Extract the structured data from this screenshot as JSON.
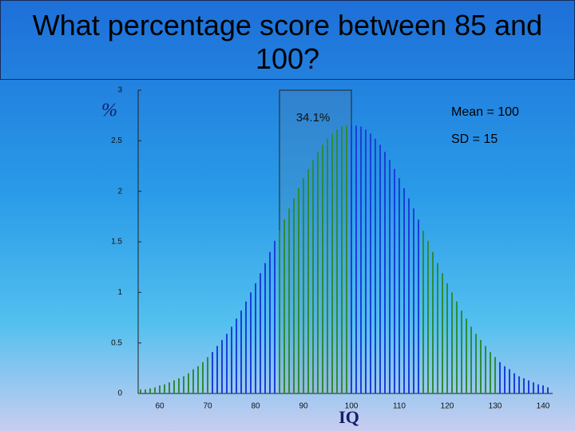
{
  "chart_data": {
    "type": "bar",
    "title": "What percentage score between 85 and 100?",
    "x_label": "IQ",
    "y_label": "%",
    "annotations": [
      "34.1%",
      "Mean = 100",
      "SD = 15"
    ],
    "highlight_range": [
      85,
      100
    ],
    "xlim": [
      55.5,
      142
    ],
    "xticks": [
      60,
      70,
      80,
      90,
      100,
      110,
      120,
      130,
      140
    ],
    "ylim": [
      0,
      3
    ],
    "yticks": [
      0,
      0.5,
      1,
      1.5,
      2,
      2.5,
      3
    ],
    "series": [
      {
        "color": "#2e8b3a",
        "x": [
          56,
          57,
          58,
          59,
          60,
          61,
          62,
          63,
          64,
          65,
          66,
          67,
          68,
          69,
          70
        ],
        "values": [
          0.04,
          0.04,
          0.05,
          0.06,
          0.08,
          0.09,
          0.11,
          0.13,
          0.15,
          0.17,
          0.2,
          0.24,
          0.27,
          0.31,
          0.36
        ]
      },
      {
        "color": "#1a3fd8",
        "x": [
          71,
          72,
          73,
          74,
          75,
          76,
          77,
          78,
          79,
          80,
          81,
          82,
          83,
          84
        ],
        "values": [
          0.41,
          0.47,
          0.53,
          0.59,
          0.66,
          0.74,
          0.82,
          0.91,
          1.0,
          1.09,
          1.19,
          1.29,
          1.4,
          1.51
        ]
      },
      {
        "color": "#2e8b3a",
        "x": [
          85,
          86,
          87,
          88,
          89,
          90,
          91,
          92,
          93,
          94,
          95,
          96,
          97,
          98,
          99
        ],
        "values": [
          1.61,
          1.72,
          1.83,
          1.93,
          2.03,
          2.13,
          2.22,
          2.31,
          2.39,
          2.46,
          2.52,
          2.57,
          2.61,
          2.64,
          2.65
        ]
      },
      {
        "color": "#1a3fd8",
        "x": [
          100,
          101,
          102,
          103,
          104,
          105,
          106,
          107,
          108,
          109,
          110,
          111,
          112,
          113,
          114
        ],
        "values": [
          2.66,
          2.65,
          2.64,
          2.61,
          2.57,
          2.52,
          2.46,
          2.39,
          2.31,
          2.22,
          2.13,
          2.03,
          1.93,
          1.83,
          1.72
        ]
      },
      {
        "color": "#2e8b3a",
        "x": [
          115,
          116,
          117,
          118,
          119,
          120,
          121,
          122,
          123,
          124,
          125,
          126,
          127,
          128,
          129,
          130
        ],
        "values": [
          1.61,
          1.51,
          1.4,
          1.29,
          1.19,
          1.09,
          1.0,
          0.91,
          0.82,
          0.74,
          0.66,
          0.59,
          0.53,
          0.47,
          0.41,
          0.36
        ]
      },
      {
        "color": "#1a3fd8",
        "x": [
          131,
          132,
          133,
          134,
          135,
          136,
          137,
          138,
          139,
          140,
          141
        ],
        "values": [
          0.31,
          0.27,
          0.24,
          0.2,
          0.17,
          0.15,
          0.13,
          0.11,
          0.09,
          0.08,
          0.06
        ]
      }
    ]
  }
}
